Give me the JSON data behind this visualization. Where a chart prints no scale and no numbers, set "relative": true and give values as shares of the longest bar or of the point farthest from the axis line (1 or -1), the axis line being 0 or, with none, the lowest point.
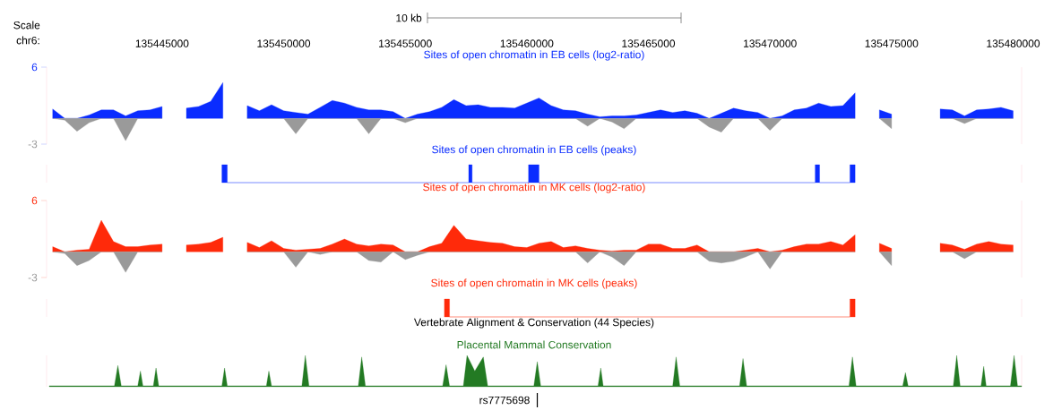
{
  "chart_data": [
    {
      "type": "area",
      "title": "Sites of open chromatin in EB cells (log2-ratio)",
      "xlabel": "chr6:",
      "annotations": [
        "Scale",
        "10 kb"
      ],
      "x": [
        135440500,
        135441000,
        135441500,
        135442000,
        135442500,
        135443000,
        135443500,
        135444000,
        135444500,
        135445000,
        135445500,
        135446000,
        135446500,
        135447000,
        135447500,
        135448000,
        135448500,
        135449000,
        135449500,
        135450000,
        135450500,
        135451000,
        135451500,
        135452000,
        135452500,
        135453000,
        135453500,
        135454000,
        135454500,
        135455000,
        135455500,
        135456000,
        135456500,
        135457000,
        135457500,
        135458000,
        135458500,
        135459000,
        135459500,
        135460000,
        135460500,
        135461000,
        135461500,
        135462000,
        135462500,
        135463000,
        135463500,
        135464000,
        135464500,
        135465000,
        135465500,
        135466000,
        135466500,
        135467000,
        135467500,
        135468000,
        135468500,
        135469000,
        135469500,
        135470000,
        135470500,
        135471000,
        135471500,
        135472000,
        135472500,
        135473000,
        135473500,
        135474000,
        135474500,
        135475000,
        135475500,
        135476000,
        135476500,
        135477000,
        135477500,
        135478000,
        135478500,
        135479000,
        135479500,
        135480000
      ],
      "series": [
        {
          "color": "#0a2cff",
          "values": [
            1.1,
            0,
            0,
            0.4,
            1.0,
            1.0,
            0.3,
            0.9,
            1.0,
            1.4,
            null,
            1.2,
            1.4,
            2.0,
            4.2,
            null,
            1.5,
            0.9,
            1.6,
            0.9,
            0.7,
            0.5,
            1.3,
            2.1,
            1.8,
            1.3,
            1.0,
            1.0,
            0.8,
            0,
            0.5,
            0.8,
            1.3,
            2.2,
            1.5,
            1.6,
            1.3,
            1.3,
            1.2,
            1.8,
            2.4,
            1.5,
            1.0,
            0.9,
            0.5,
            0.2,
            0.3,
            0.3,
            0.4,
            0.7,
            1.0,
            0.7,
            0.9,
            0.6,
            0,
            0.6,
            1.2,
            0.9,
            0.7,
            0,
            0.3,
            1.0,
            1.2,
            1.8,
            1.4,
            1.5,
            3.0,
            null,
            1.0,
            0.5,
            null,
            null,
            null,
            1.1,
            1.0,
            0.3,
            1.0,
            1.1,
            1.3,
            0.9
          ]
        },
        {
          "color": "#9a9a9a",
          "values": [
            0,
            -0.2,
            -1.5,
            -0.5,
            0,
            0,
            -2.6,
            0,
            0,
            0,
            null,
            null,
            null,
            null,
            null,
            null,
            0,
            0,
            0,
            0,
            -1.8,
            0,
            0,
            0,
            0,
            0,
            -1.8,
            0,
            0,
            -0.5,
            0,
            0,
            0,
            0,
            0,
            0,
            0,
            0,
            0,
            0,
            0,
            0,
            0,
            0,
            -0.9,
            0,
            -0.4,
            -1.2,
            0,
            0,
            0,
            0,
            0,
            0,
            -1.0,
            -1.6,
            0,
            0,
            0,
            -1.4,
            0,
            0,
            0,
            0,
            0,
            0,
            0,
            null,
            0,
            -1.2,
            null,
            null,
            null,
            0,
            0,
            -0.6,
            0,
            0,
            0,
            0
          ]
        }
      ],
      "xlim": [
        135440250,
        135480350
      ],
      "ylim": [
        -3,
        6
      ],
      "xticks": [
        135445000,
        135450000,
        135455000,
        135460000,
        135465000,
        135470000,
        135475000,
        135480000
      ],
      "yticks": [
        -3,
        6
      ]
    },
    {
      "type": "area",
      "relative": true,
      "title": "Sites of open chromatin in EB cells (peaks)",
      "xlim": [
        135440250,
        135480350
      ],
      "tick_labels": false,
      "x": [
        135447460,
        135447460,
        135447680,
        135447680,
        135457610,
        135457610,
        135457750,
        135457750,
        135460070,
        135460070,
        135460500,
        135460500,
        135471860,
        135471860,
        135472040,
        135472040,
        135473290,
        135473290,
        135473500,
        135473500
      ],
      "series": [
        {
          "color": "#0a2cff",
          "values": [
            0,
            1,
            1,
            0,
            0,
            1,
            1,
            0,
            0,
            1,
            1,
            0,
            0,
            1,
            1,
            0,
            0,
            1,
            1,
            0
          ]
        }
      ]
    },
    {
      "type": "area",
      "title": "Sites of open chromatin in MK cells (log2-ratio)",
      "tick_labels": "y",
      "x": [
        135440500,
        135441000,
        135441500,
        135442000,
        135442500,
        135443000,
        135443500,
        135444000,
        135444500,
        135445000,
        135445500,
        135446000,
        135446500,
        135447000,
        135447500,
        135448000,
        135448500,
        135449000,
        135449500,
        135450000,
        135450500,
        135451000,
        135451500,
        135452000,
        135452500,
        135453000,
        135453500,
        135454000,
        135454500,
        135455000,
        135455500,
        135456000,
        135456500,
        135457000,
        135457500,
        135458000,
        135458500,
        135459000,
        135459500,
        135460000,
        135460500,
        135461000,
        135461500,
        135462000,
        135462500,
        135463000,
        135463500,
        135464000,
        135464500,
        135465000,
        135465500,
        135466000,
        135466500,
        135467000,
        135467500,
        135468000,
        135468500,
        135469000,
        135469500,
        135470000,
        135470500,
        135471000,
        135471500,
        135472000,
        135472500,
        135473000,
        135473500,
        135474000,
        135474500,
        135475000,
        135475500,
        135476000,
        135476500,
        135477000,
        135477500,
        135478000,
        135478500,
        135479000,
        135479500,
        135480000
      ],
      "series": [
        {
          "color": "#ff2a0a",
          "values": [
            0.6,
            0,
            0.2,
            0.3,
            3.7,
            1.2,
            0.6,
            0.6,
            0.8,
            0.9,
            null,
            0.8,
            0.9,
            1.1,
            1.7,
            null,
            1.1,
            0.5,
            1.3,
            0.4,
            0.2,
            0.3,
            0.4,
            0.9,
            1.5,
            0.9,
            0.7,
            0.9,
            0.8,
            0,
            0,
            0.6,
            1.0,
            3.1,
            1.5,
            1.3,
            1.1,
            1.0,
            0.6,
            0.5,
            1.0,
            1.2,
            0.5,
            0.7,
            0.4,
            0.2,
            0.1,
            0.2,
            0.2,
            0.9,
            0.9,
            0.4,
            0.4,
            0.8,
            0,
            0,
            0,
            0.2,
            0.4,
            0,
            0.2,
            0.6,
            0.9,
            0.9,
            1.2,
            0.8,
            2.0,
            null,
            1.0,
            0.4,
            null,
            null,
            null,
            1.0,
            0.8,
            0.3,
            0.9,
            1.2,
            0.9,
            0.8
          ]
        },
        {
          "color": "#9a9a9a",
          "values": [
            0,
            -0.2,
            -1.6,
            -1.0,
            0,
            0,
            -2.4,
            0,
            0,
            0,
            null,
            null,
            null,
            null,
            null,
            null,
            0,
            0,
            0,
            0,
            -1.8,
            0,
            -0.3,
            0,
            0,
            0,
            -1.0,
            -1.2,
            0,
            -0.9,
            -0.4,
            0,
            0,
            0,
            0,
            0,
            0,
            0,
            0,
            0,
            0,
            0,
            0,
            0,
            -1.3,
            0,
            -0.6,
            -1.6,
            0,
            0,
            0,
            0,
            0,
            0,
            -1.1,
            -1.3,
            -1.1,
            -0.6,
            0,
            -2.0,
            0,
            0,
            0,
            0,
            0,
            0,
            0,
            null,
            0,
            -1.6,
            null,
            null,
            null,
            0,
            0,
            -0.8,
            0,
            0,
            0,
            0
          ]
        }
      ],
      "xlim": [
        135440250,
        135480350
      ],
      "ylim": [
        -3,
        6
      ],
      "yticks": [
        -3,
        6
      ]
    },
    {
      "type": "area",
      "relative": true,
      "title": "Sites of open chromatin in MK cells (peaks)",
      "xlim": [
        135440250,
        135480350
      ],
      "tick_labels": false,
      "x": [
        135456610,
        135456610,
        135456820,
        135456820,
        135473290,
        135473290,
        135473500,
        135473500
      ],
      "series": [
        {
          "color": "#ff2a0a",
          "values": [
            0,
            1,
            1,
            0,
            0,
            1,
            1,
            0
          ]
        }
      ]
    },
    {
      "type": "area",
      "relative": true,
      "title": "Vertebrate Alignment & Conservation (44 Species)",
      "tick_labels": false,
      "annotations": [
        {
          "text": "rs7775698",
          "x": 135460430,
          "y": 0
        }
      ],
      "series": [
        {
          "name": "Placental Mammal Conservation",
          "color": "#237a23",
          "x": [
            135440360,
            135443040,
            135443180,
            135443320,
            135444000,
            135444110,
            135444210,
            135444640,
            135444750,
            135444860,
            135447460,
            135447570,
            135447680,
            135449290,
            135449390,
            135449500,
            135450750,
            135450890,
            135451040,
            135453070,
            135453210,
            135453360,
            135456540,
            135456680,
            135456820,
            135457390,
            135457540,
            135457860,
            135458210,
            135458390,
            135460290,
            135460430,
            135460570,
            135462930,
            135463040,
            135463140,
            135466000,
            135466140,
            135466290,
            135468750,
            135468890,
            135469040,
            135473250,
            135473390,
            135473540,
            135475460,
            135475570,
            135475680,
            135477540,
            135477680,
            135477820,
            135478680,
            135478790,
            135478890,
            135479890,
            135480040,
            135480180,
            135480350
          ],
          "values": [
            0.03,
            0.03,
            0.68,
            0.03,
            0.03,
            0.5,
            0.03,
            0.03,
            0.6,
            0.03,
            0.03,
            0.6,
            0.03,
            0.03,
            0.5,
            0.03,
            0.03,
            1.0,
            0.03,
            0.03,
            0.95,
            0.03,
            0.03,
            0.7,
            0.03,
            0.03,
            1.0,
            0.5,
            0.95,
            0.03,
            0.03,
            0.8,
            0.03,
            0.03,
            0.6,
            0.03,
            0.03,
            0.95,
            0.03,
            0.03,
            0.9,
            0.03,
            0.03,
            0.95,
            0.03,
            0.03,
            0.45,
            0.03,
            0.03,
            1.0,
            0.03,
            0.03,
            0.65,
            0.03,
            0.03,
            1.0,
            0.03,
            0.03
          ]
        }
      ],
      "xlim": [
        135440250,
        135480350
      ]
    }
  ]
}
